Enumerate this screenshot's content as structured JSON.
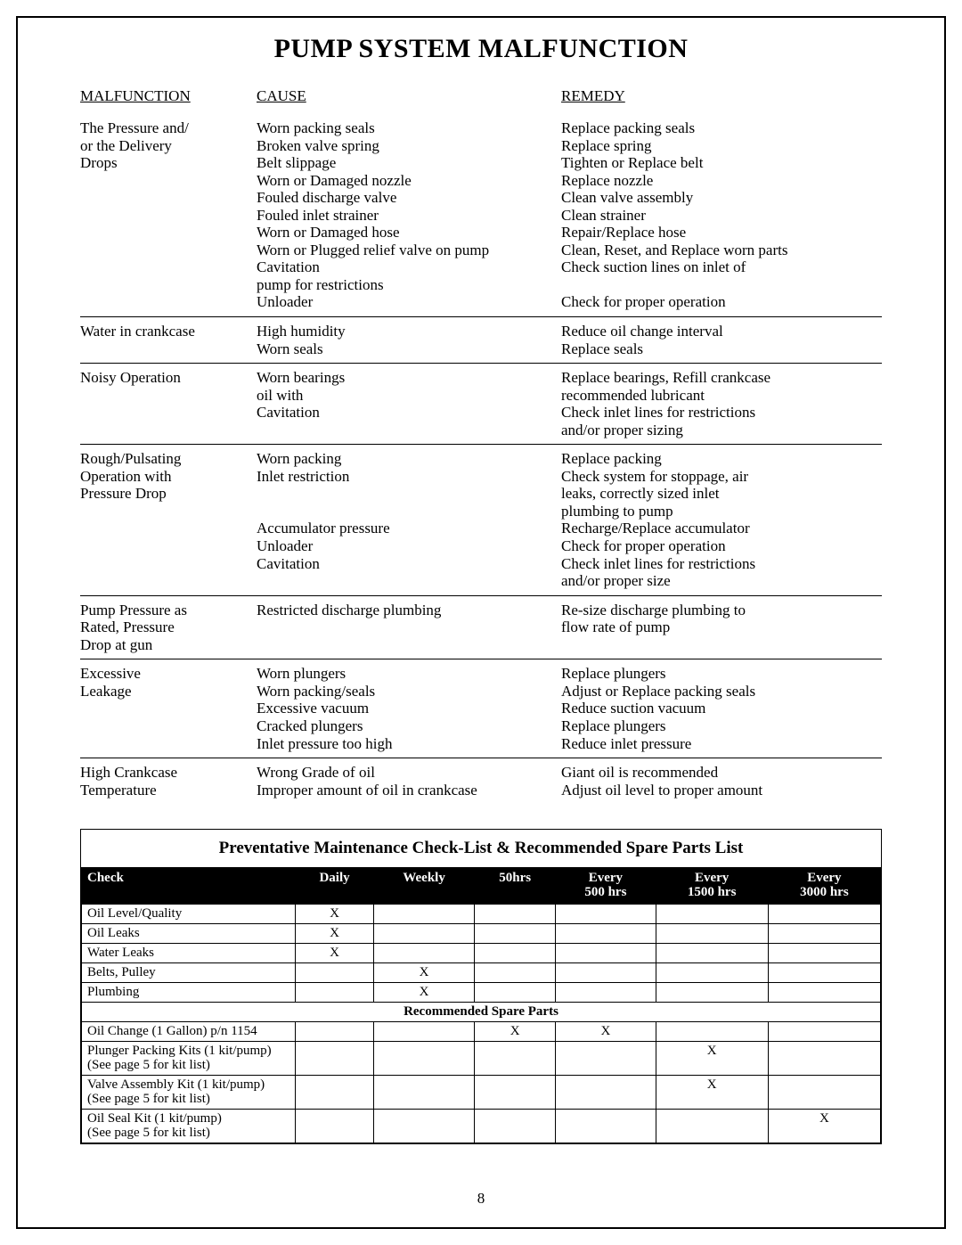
{
  "title": "PUMP SYSTEM MALFUNCTION",
  "headers": {
    "m": "MALFUNCTION",
    "c": "CAUSE",
    "r": "REMEDY"
  },
  "rows": [
    {
      "m": [
        "The Pressure and/",
        "or the Delivery",
        "Drops"
      ],
      "c": [
        "Worn packing seals",
        "Broken valve spring",
        "Belt slippage",
        "Worn or Damaged nozzle",
        "Fouled discharge valve",
        "Fouled inlet strainer",
        "Worn or Damaged hose",
        "Worn or Plugged relief valve on pump",
        "Cavitation",
        "pump for restrictions",
        "Unloader"
      ],
      "r": [
        "Replace packing seals",
        "Replace spring",
        "Tighten or Replace belt",
        "Replace nozzle",
        "Clean valve assembly",
        "Clean strainer",
        "Repair/Replace hose",
        "Clean, Reset, and Replace worn parts",
        "Check suction lines on inlet of",
        "",
        "Check for proper operation"
      ]
    },
    {
      "m": [
        "Water in crankcase"
      ],
      "c": [
        "High humidity",
        "Worn seals"
      ],
      "r": [
        "Reduce oil change interval",
        "Replace seals"
      ]
    },
    {
      "m": [
        "Noisy Operation"
      ],
      "c": [
        "Worn bearings",
        "oil with",
        "Cavitation"
      ],
      "r": [
        "Replace bearings, Refill crankcase",
        " recommended lubricant",
        "Check inlet lines for restrictions",
        "and/or proper sizing"
      ]
    },
    {
      "m": [
        "Rough/Pulsating",
        "Operation with",
        "Pressure Drop"
      ],
      "c": [
        "Worn packing",
        "Inlet restriction",
        "",
        "",
        "Accumulator pressure",
        "Unloader",
        "Cavitation"
      ],
      "r": [
        "Replace packing",
        "Check system for stoppage, air",
        "leaks, correctly sized inlet",
        "plumbing to pump",
        "Recharge/Replace accumulator",
        "Check for proper operation",
        "Check inlet lines for restrictions",
        "and/or proper size"
      ]
    },
    {
      "m": [
        "Pump Pressure as",
        "Rated, Pressure",
        "Drop at gun"
      ],
      "c": [
        "Restricted discharge plumbing"
      ],
      "r": [
        "Re-size discharge plumbing to",
        "flow rate of pump"
      ]
    },
    {
      "m": [
        "Excessive",
        "Leakage"
      ],
      "c": [
        "Worn plungers",
        "Worn packing/seals",
        "Excessive vacuum",
        "Cracked plungers",
        "Inlet pressure too high"
      ],
      "r": [
        "Replace plungers",
        "Adjust or Replace packing seals",
        "Reduce suction vacuum",
        "Replace plungers",
        "Reduce inlet pressure"
      ]
    },
    {
      "m": [
        "High Crankcase",
        "Temperature"
      ],
      "c": [
        "Wrong Grade of oil",
        "Improper amount of oil in crankcase"
      ],
      "r": [
        "Giant oil is recommended",
        "Adjust oil level to proper amount"
      ],
      "no_border": true
    }
  ],
  "pm": {
    "title": "Preventative Maintenance Check-List & Recommended Spare Parts List",
    "cols": [
      "Check",
      "Daily",
      "Weekly",
      "50hrs",
      "Every\n500 hrs",
      "Every\n1500 hrs",
      "Every\n3000 hrs"
    ],
    "section1": [
      {
        "label": "Oil Level/Quality",
        "marks": [
          "X",
          "",
          "",
          "",
          "",
          ""
        ]
      },
      {
        "label": "Oil Leaks",
        "marks": [
          "X",
          "",
          "",
          "",
          "",
          ""
        ]
      },
      {
        "label": "Water Leaks",
        "marks": [
          "X",
          "",
          "",
          "",
          "",
          ""
        ]
      },
      {
        "label": "Belts, Pulley",
        "marks": [
          "",
          "X",
          "",
          "",
          "",
          ""
        ]
      },
      {
        "label": "Plumbing",
        "marks": [
          "",
          "X",
          "",
          "",
          "",
          ""
        ]
      }
    ],
    "sub_header": "Recommended Spare Parts",
    "section2": [
      {
        "label": "Oil Change (1 Gallon) p/n 1154",
        "marks": [
          "",
          "",
          "X",
          "X",
          "",
          ""
        ]
      },
      {
        "label": "Plunger Packing Kits (1 kit/pump)\n(See page 5 for kit list)",
        "marks": [
          "",
          "",
          "",
          "",
          "X",
          ""
        ]
      },
      {
        "label": "Valve Assembly Kit (1 kit/pump)\n(See page 5 for kit list)",
        "marks": [
          "",
          "",
          "",
          "",
          "X",
          ""
        ]
      },
      {
        "label": "Oil Seal Kit (1 kit/pump)\n(See page 5 for kit list)",
        "marks": [
          "",
          "",
          "",
          "",
          "",
          "X"
        ]
      }
    ]
  },
  "page_number": "8"
}
